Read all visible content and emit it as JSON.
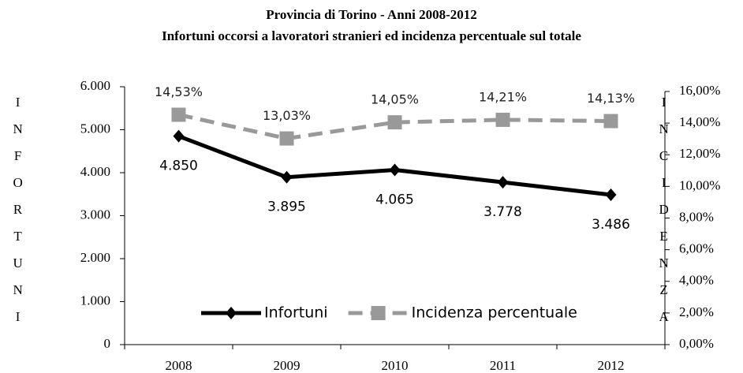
{
  "chart_data": {
    "type": "line",
    "title": "Provincia di Torino - Anni 2008-2012",
    "subtitle": "Infortuni occorsi a lavoratori stranieri ed incidenza percentuale sul totale",
    "y_label": "INFORTUNI",
    "y2_label": "INCIDENZA",
    "categories": [
      "2008",
      "2009",
      "2010",
      "2011",
      "2012"
    ],
    "series": [
      {
        "name": "Infortuni",
        "color": "#000000",
        "dashed": false,
        "marker": "diamond",
        "values": [
          4850,
          3895,
          4065,
          3778,
          3486
        ],
        "value_labels": [
          "4.850",
          "3.895",
          "4.065",
          "3.778",
          "3.486"
        ]
      },
      {
        "name": "Incidenza percentuale",
        "color": "#999999",
        "dashed": true,
        "marker": "square",
        "axis": "y2",
        "values": [
          14.53,
          13.03,
          14.05,
          14.21,
          14.13
        ],
        "value_labels": [
          "14,53%",
          "13,03%",
          "14,05%",
          "14,21%",
          "14,13%"
        ]
      }
    ],
    "ylim": [
      0,
      6000
    ],
    "yticks": [
      0,
      {
        "value": 1000,
        "label": "1.000"
      },
      {
        "value": 2000,
        "label": "2.000"
      },
      {
        "value": 3000,
        "label": "3.000"
      },
      {
        "value": 4000,
        "label": "4.000"
      },
      {
        "value": 5000,
        "label": "5.000"
      },
      {
        "value": 6000,
        "label": "6.000"
      }
    ],
    "y2lim": [
      0,
      16
    ],
    "y2ticks": [
      {
        "value": 0,
        "label": "0,00%"
      },
      {
        "value": 2,
        "label": "2,00%"
      },
      {
        "value": 4,
        "label": "4,00%"
      },
      {
        "value": 6,
        "label": "6,00%"
      },
      {
        "value": 8,
        "label": "8,00%"
      },
      {
        "value": 10,
        "label": "10,00%"
      },
      {
        "value": 12,
        "label": "12,00%"
      },
      {
        "value": 14,
        "label": "14,00%"
      },
      {
        "value": 16,
        "label": "16,00%"
      }
    ],
    "legend": "bottom"
  }
}
